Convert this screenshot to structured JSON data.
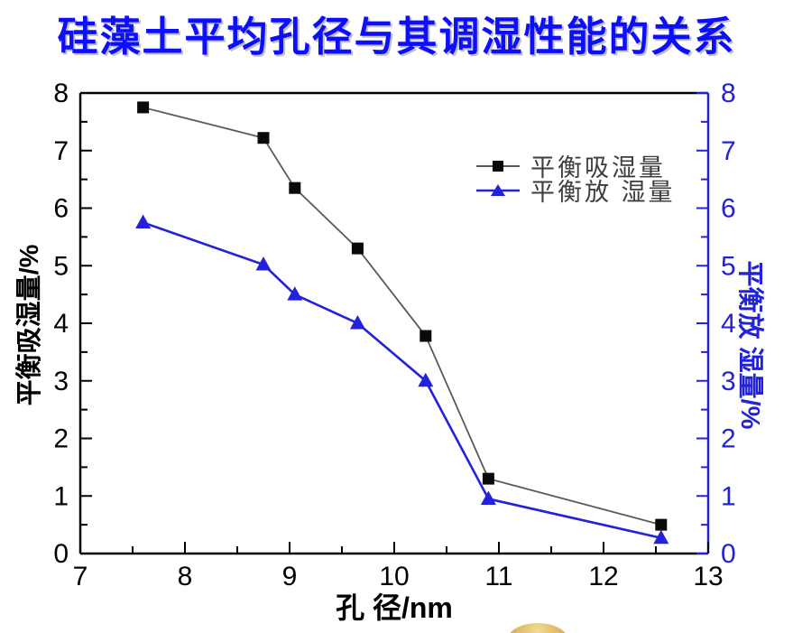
{
  "colors": {
    "title_blue": "#0d0dff",
    "axis_black": "#000000",
    "axis_blue": "#2222dd",
    "absorption_marker": "#0a0a0a",
    "absorption_line": "#5a5a5a",
    "desorption_blue": "#2222dd",
    "legend_text": "#3d3d3d",
    "gold_light": "#f3dc96",
    "gold_dark": "#b58427"
  },
  "decoration": {
    "gold_sphere_partial": "partial gold sphere peeking from bottom edge"
  },
  "chart_data": {
    "type": "line",
    "title": "硅藻土平均孔径与其调湿性能的关系",
    "xlabel": "孔 径/nm",
    "ylabel_left": "平衡吸湿量/%",
    "ylabel_right": "平衡放 湿量/%",
    "xlim": [
      7,
      13
    ],
    "ylim_left": [
      0,
      8
    ],
    "ylim_right": [
      0,
      8
    ],
    "x_ticks": [
      7,
      8,
      9,
      10,
      11,
      12,
      13
    ],
    "y_ticks_left": [
      0,
      1,
      2,
      3,
      4,
      5,
      6,
      7,
      8
    ],
    "y_ticks_right": [
      0,
      1,
      2,
      3,
      4,
      5,
      6,
      7,
      8
    ],
    "minor_tick_step": 0.5,
    "grid": false,
    "legend_position": "inside upper right",
    "x": [
      7.6,
      8.75,
      9.05,
      9.65,
      10.3,
      10.9,
      12.55
    ],
    "series": [
      {
        "name": "平衡吸湿量",
        "axis": "left",
        "marker": "square",
        "values": [
          7.75,
          7.22,
          6.35,
          5.3,
          3.78,
          1.3,
          0.5
        ]
      },
      {
        "name": "平衡放 湿量",
        "axis": "right",
        "marker": "triangle",
        "values": [
          5.75,
          5.02,
          4.5,
          4.0,
          3.0,
          0.95,
          0.27
        ]
      }
    ]
  }
}
